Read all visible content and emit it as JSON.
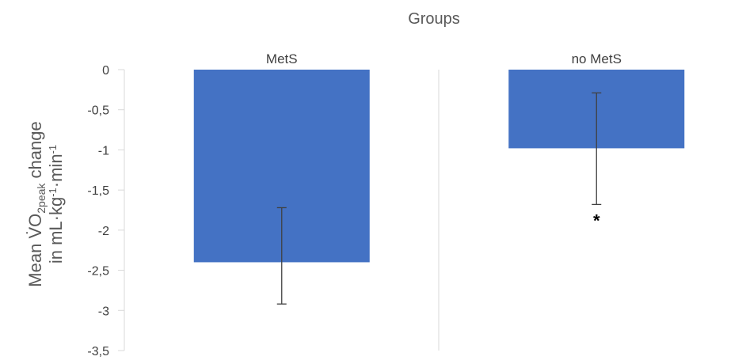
{
  "chart_data": {
    "type": "bar",
    "title": "Groups",
    "categories": [
      "MetS",
      "no MetS"
    ],
    "values": [
      -2.4,
      -0.98
    ],
    "error_low": [
      -2.92,
      -1.68
    ],
    "error_high": [
      -1.72,
      -0.29
    ],
    "annotations": [
      {
        "category": "no MetS",
        "text": "*"
      }
    ],
    "ylabel": {
      "line1_prefix": "Mean V̇O",
      "line1_sub": "2peak",
      "line1_suffix": " change",
      "line2_prefix": "in mL·kg",
      "line2_sup1": "-1",
      "line2_mid": "·min",
      "line2_sup2": "-1"
    },
    "ylim": [
      -3.5,
      0
    ],
    "yticks": [
      "0",
      "-0,5",
      "-1",
      "-1,5",
      "-2",
      "-2,5",
      "-3",
      "-3,5"
    ],
    "bar_color": "#4472C4",
    "grid": false
  }
}
